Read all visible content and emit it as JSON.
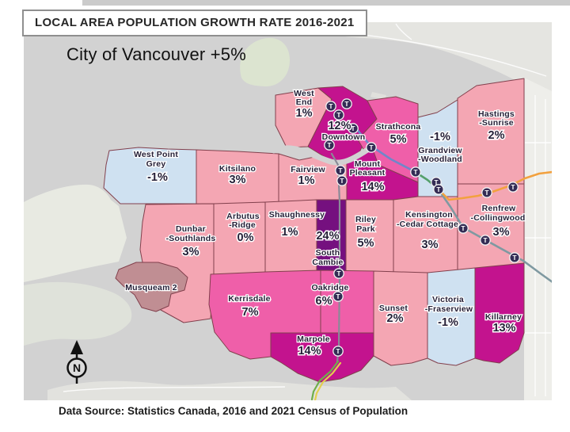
{
  "title": "LOCAL AREA POPULATION GROWTH RATE 2016-2021",
  "city_summary": "City of Vancouver +5%",
  "data_source": "Data Source: Statistics Canada, 2016 and 2021 Census of Population",
  "compass_label": "N",
  "colors": {
    "water": "#d2d2d2",
    "outer_land": "#e6e6e2",
    "park_green": "#dce4d0",
    "growth_negative": "#cfe1f1",
    "growth_low": "#f4a6b3",
    "growth_mid": "#ef5fa9",
    "growth_high": "#c3138e",
    "growth_very_high": "#75107f",
    "musqueam_land": "#c08e93",
    "region_border": "#82404d",
    "station_fill": "#342c55"
  },
  "regions": [
    {
      "id": "west-point-grey",
      "name": "West Point Grey",
      "value": "-1%",
      "color": "#cfe1f1",
      "lines": [
        {
          "t": "West Point",
          "k": "n"
        },
        {
          "t": "Grey",
          "k": "n"
        },
        {
          "t": "-1%",
          "k": "v"
        }
      ]
    },
    {
      "id": "kitsilano",
      "name": "Kitsilano",
      "value": "3%",
      "color": "#f4a6b3",
      "lines": [
        {
          "t": "Kitsilano",
          "k": "n"
        },
        {
          "t": "3%",
          "k": "v"
        }
      ]
    },
    {
      "id": "fairview",
      "name": "Fairview",
      "value": "1%",
      "color": "#f4a6b3",
      "lines": [
        {
          "t": "Fairview",
          "k": "n"
        },
        {
          "t": "1%",
          "k": "v"
        }
      ]
    },
    {
      "id": "west-end",
      "name": "West End",
      "value": "1%",
      "color": "#f4a6b3",
      "lines": [
        {
          "t": "West",
          "k": "n"
        },
        {
          "t": "End",
          "k": "n"
        },
        {
          "t": "1%",
          "k": "v"
        }
      ]
    },
    {
      "id": "downtown",
      "name": "Downtown",
      "value": "12%",
      "color": "#c3138e",
      "lines": [
        {
          "t": "12%",
          "k": "v"
        },
        {
          "t": "Downtown",
          "k": "n"
        }
      ]
    },
    {
      "id": "strathcona",
      "name": "Strathcona",
      "value": "5%",
      "color": "#ef5fa9",
      "lines": [
        {
          "t": "Strathcona",
          "k": "n"
        },
        {
          "t": "5%",
          "k": "v"
        }
      ]
    },
    {
      "id": "grandview-woodland",
      "name": "Grandview-Woodland",
      "value": "-1%",
      "color": "#cfe1f1",
      "lines": [
        {
          "t": "-1%",
          "k": "v"
        },
        {
          "t": "Grandview",
          "k": "n"
        },
        {
          "t": "-Woodland",
          "k": "n"
        }
      ]
    },
    {
      "id": "hastings-sunrise",
      "name": "Hastings-Sunrise",
      "value": "2%",
      "color": "#f4a6b3",
      "lines": [
        {
          "t": "Hastings",
          "k": "n"
        },
        {
          "t": "-Sunrise",
          "k": "n"
        },
        {
          "t": "2%",
          "k": "v"
        }
      ]
    },
    {
      "id": "mount-pleasant",
      "name": "Mount Pleasant",
      "value": "14%",
      "color": "#c3138e",
      "lines": [
        {
          "t": "Mount",
          "k": "n"
        },
        {
          "t": "Pleasant",
          "k": "n"
        },
        {
          "t": "14%",
          "k": "v"
        }
      ]
    },
    {
      "id": "dunbar-southlands",
      "name": "Dunbar-Southlands",
      "value": "3%",
      "color": "#f4a6b3",
      "lines": [
        {
          "t": "Dunbar",
          "k": "n"
        },
        {
          "t": "-Southlands",
          "k": "n"
        },
        {
          "t": "3%",
          "k": "v"
        }
      ]
    },
    {
      "id": "arbutus-ridge",
      "name": "Arbutus-Ridge",
      "value": "0%",
      "color": "#f4a6b3",
      "lines": [
        {
          "t": "Arbutus",
          "k": "n"
        },
        {
          "t": "-Ridge",
          "k": "n"
        },
        {
          "t": "0%",
          "k": "v"
        }
      ]
    },
    {
      "id": "shaughnessy",
      "name": "Shaughnessy",
      "value": "1%",
      "color": "#f4a6b3",
      "lines": [
        {
          "t": "Shaughnessy",
          "k": "n"
        },
        {
          "t": "1%",
          "k": "v"
        }
      ]
    },
    {
      "id": "south-cambie",
      "name": "South Cambie",
      "value": "24%",
      "color": "#75107f",
      "lines": [
        {
          "t": "24%",
          "k": "v"
        },
        {
          "t": "South",
          "k": "n"
        },
        {
          "t": "Cambie",
          "k": "n"
        }
      ]
    },
    {
      "id": "riley-park",
      "name": "Riley Park",
      "value": "5%",
      "color": "#f4a6b3",
      "lines": [
        {
          "t": "Riley",
          "k": "n"
        },
        {
          "t": "Park",
          "k": "n"
        },
        {
          "t": "5%",
          "k": "v"
        }
      ]
    },
    {
      "id": "kensington-cedar-cottage",
      "name": "Kensington-Cedar Cottage",
      "value": "3%",
      "color": "#f4a6b3",
      "lines": [
        {
          "t": "Kensington",
          "k": "n"
        },
        {
          "t": "-Cedar Cottage",
          "k": "n"
        },
        {
          "t": "3%",
          "k": "v"
        }
      ]
    },
    {
      "id": "renfrew-collingwood",
      "name": "Renfrew-Collingwood",
      "value": "3%",
      "color": "#f4a6b3",
      "lines": [
        {
          "t": "Renfrew",
          "k": "n"
        },
        {
          "t": "-Collingwood",
          "k": "n"
        },
        {
          "t": "3%",
          "k": "v"
        }
      ]
    },
    {
      "id": "musqueam",
      "name": "Musqueam 2",
      "value": null,
      "color": "#c08e93",
      "lines": [
        {
          "t": "Musqueam 2",
          "k": "n"
        }
      ]
    },
    {
      "id": "kerrisdale",
      "name": "Kerrisdale",
      "value": "7%",
      "color": "#ef5fa9",
      "lines": [
        {
          "t": "Kerrisdale",
          "k": "n"
        },
        {
          "t": "7%",
          "k": "v"
        }
      ]
    },
    {
      "id": "oakridge",
      "name": "Oakridge",
      "value": "6%",
      "color": "#ef5fa9",
      "lines": [
        {
          "t": "Oakridge",
          "k": "n"
        },
        {
          "t": "6%",
          "k": "v"
        }
      ]
    },
    {
      "id": "marpole",
      "name": "Marpole",
      "value": "14%",
      "color": "#c3138e",
      "lines": [
        {
          "t": "Marpole",
          "k": "n"
        },
        {
          "t": "14%",
          "k": "v"
        }
      ]
    },
    {
      "id": "sunset",
      "name": "Sunset",
      "value": "2%",
      "color": "#f4a6b3",
      "lines": [
        {
          "t": "Sunset",
          "k": "n"
        },
        {
          "t": "2%",
          "k": "v"
        }
      ]
    },
    {
      "id": "victoria-fraserview",
      "name": "Victoria-Fraserview",
      "value": "-1%",
      "color": "#cfe1f1",
      "lines": [
        {
          "t": "Victoria",
          "k": "n"
        },
        {
          "t": "-Fraserview",
          "k": "n"
        },
        {
          "t": "-1%",
          "k": "v"
        }
      ]
    },
    {
      "id": "killarney",
      "name": "Killarney",
      "value": "13%",
      "color": "#c3138e",
      "lines": [
        {
          "t": "Killarney",
          "k": "n"
        },
        {
          "t": "13%",
          "k": "v"
        }
      ]
    }
  ],
  "transit": {
    "station_icon": "T",
    "lines": [
      {
        "id": "canada-line",
        "color": "#8a8a97"
      },
      {
        "id": "canada-line-south-green",
        "color": "#6fae4a"
      },
      {
        "id": "canada-line-south-yellow",
        "color": "#e3cf4e"
      },
      {
        "id": "expo-blue",
        "color": "#7186c9"
      },
      {
        "id": "link-green",
        "color": "#55a06b"
      },
      {
        "id": "expo-teal",
        "color": "#7f99a1"
      },
      {
        "id": "millennium-orange",
        "color": "#f2a13f"
      }
    ]
  }
}
